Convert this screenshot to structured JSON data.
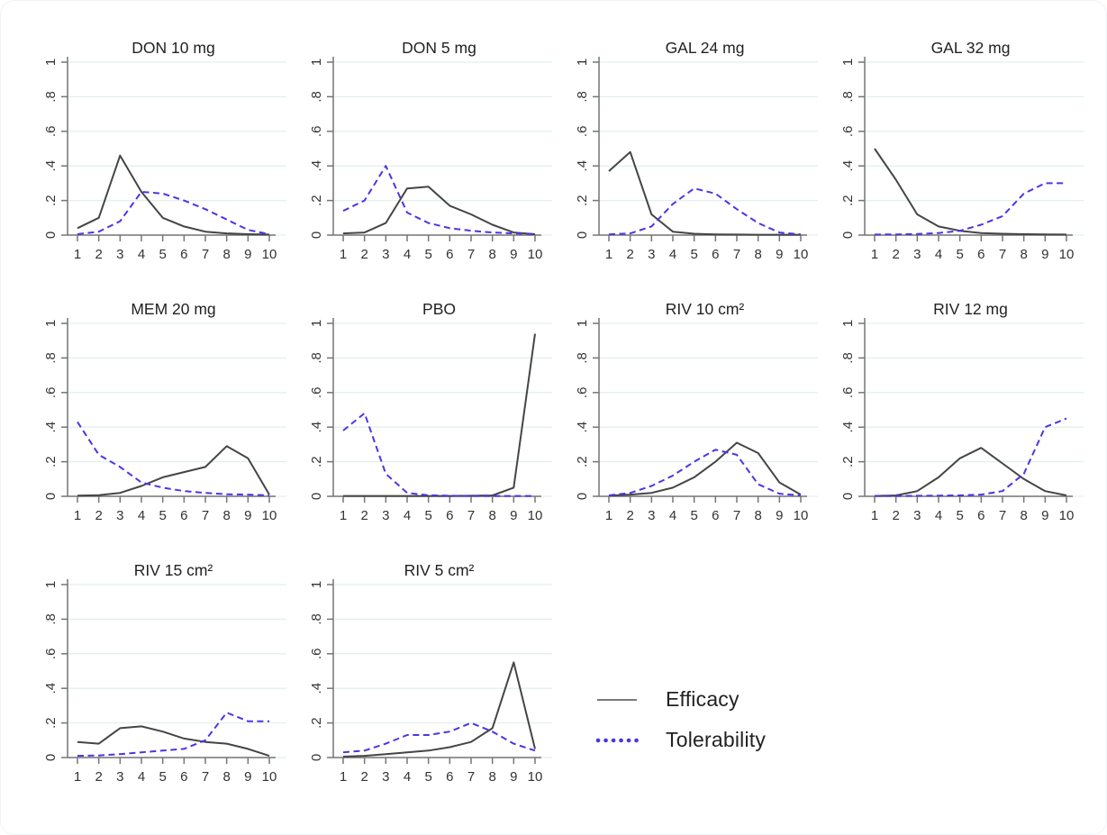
{
  "figure": {
    "description": "Grid of rankogram line charts: probability (0-1) versus rank (1-10) for Alzheimer drug treatments, two curves per panel"
  },
  "colors": {
    "efficacy": "#454545",
    "tolerability": "#4a35e8",
    "grid_line": "#e1f0ef",
    "axis": "#757575",
    "tick_text": "#333333",
    "title_text": "#222222",
    "background": "#ffffff"
  },
  "legend": {
    "items": [
      {
        "label": "Efficacy",
        "series": "efficacy",
        "style": "solid"
      },
      {
        "label": "Tolerability",
        "series": "tolerability",
        "style": "dotted"
      }
    ]
  },
  "chart_data": {
    "type": "line",
    "x": [
      1,
      2,
      3,
      4,
      5,
      6,
      7,
      8,
      9,
      10
    ],
    "xticks": [
      "1",
      "2",
      "3",
      "4",
      "5",
      "6",
      "7",
      "8",
      "9",
      "10"
    ],
    "yticks": [
      0,
      0.2,
      0.4,
      0.6,
      0.8,
      1
    ],
    "ytick_labels": [
      "0",
      ".2",
      ".4",
      ".6",
      ".8",
      "1"
    ],
    "ylim": [
      0,
      1
    ],
    "grid": true,
    "legend_position": "bottom-right",
    "series_names": [
      "Efficacy",
      "Tolerability"
    ],
    "panels": [
      {
        "title": "DON 10 mg",
        "efficacy": [
          0.04,
          0.1,
          0.46,
          0.25,
          0.1,
          0.05,
          0.02,
          0.01,
          0.005,
          0.003
        ],
        "tolerability": [
          0.005,
          0.02,
          0.08,
          0.25,
          0.24,
          0.2,
          0.15,
          0.09,
          0.03,
          0.005
        ]
      },
      {
        "title": "DON 5 mg",
        "efficacy": [
          0.01,
          0.015,
          0.07,
          0.27,
          0.28,
          0.17,
          0.12,
          0.06,
          0.015,
          0.005
        ],
        "tolerability": [
          0.14,
          0.2,
          0.4,
          0.13,
          0.07,
          0.04,
          0.025,
          0.015,
          0.01,
          0.005
        ]
      },
      {
        "title": "GAL 24 mg",
        "efficacy": [
          0.37,
          0.48,
          0.12,
          0.02,
          0.008,
          0.004,
          0.003,
          0.002,
          0.002,
          0.002
        ],
        "tolerability": [
          0.004,
          0.01,
          0.05,
          0.18,
          0.27,
          0.24,
          0.15,
          0.07,
          0.015,
          0.004
        ]
      },
      {
        "title": "GAL 32 mg",
        "efficacy": [
          0.5,
          0.32,
          0.12,
          0.05,
          0.025,
          0.012,
          0.008,
          0.005,
          0.004,
          0.003
        ],
        "tolerability": [
          0.003,
          0.004,
          0.006,
          0.012,
          0.025,
          0.06,
          0.11,
          0.24,
          0.3,
          0.3
        ]
      },
      {
        "title": "MEM 20 mg",
        "efficacy": [
          0.004,
          0.006,
          0.02,
          0.06,
          0.11,
          0.14,
          0.17,
          0.29,
          0.22,
          0.01
        ],
        "tolerability": [
          0.43,
          0.24,
          0.17,
          0.08,
          0.05,
          0.03,
          0.02,
          0.012,
          0.01,
          0.005
        ]
      },
      {
        "title": "PBO",
        "efficacy": [
          0.002,
          0.002,
          0.002,
          0.002,
          0.002,
          0.002,
          0.003,
          0.005,
          0.05,
          0.94
        ],
        "tolerability": [
          0.38,
          0.48,
          0.13,
          0.02,
          0.006,
          0.003,
          0.002,
          0.002,
          0.002,
          0.002
        ]
      },
      {
        "title": "RIV 10 cm²",
        "efficacy": [
          0.004,
          0.01,
          0.02,
          0.05,
          0.11,
          0.2,
          0.31,
          0.25,
          0.08,
          0.01
        ],
        "tolerability": [
          0.005,
          0.02,
          0.06,
          0.12,
          0.2,
          0.27,
          0.24,
          0.07,
          0.015,
          0.005
        ]
      },
      {
        "title": "RIV 12 mg",
        "efficacy": [
          0.002,
          0.005,
          0.03,
          0.11,
          0.22,
          0.28,
          0.19,
          0.1,
          0.03,
          0.005
        ],
        "tolerability": [
          0.002,
          0.002,
          0.003,
          0.004,
          0.005,
          0.01,
          0.03,
          0.13,
          0.4,
          0.45
        ]
      },
      {
        "title": "RIV 15 cm²",
        "efficacy": [
          0.09,
          0.08,
          0.17,
          0.18,
          0.15,
          0.11,
          0.09,
          0.08,
          0.05,
          0.01
        ],
        "tolerability": [
          0.01,
          0.012,
          0.02,
          0.03,
          0.04,
          0.05,
          0.1,
          0.26,
          0.21,
          0.21
        ]
      },
      {
        "title": "RIV 5 cm²",
        "efficacy": [
          0.005,
          0.01,
          0.02,
          0.03,
          0.04,
          0.06,
          0.09,
          0.17,
          0.55,
          0.05
        ],
        "tolerability": [
          0.03,
          0.04,
          0.08,
          0.13,
          0.13,
          0.15,
          0.2,
          0.15,
          0.08,
          0.04
        ]
      }
    ]
  }
}
